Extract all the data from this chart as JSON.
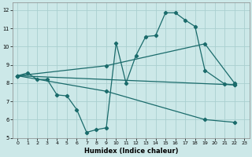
{
  "xlabel": "Humidex (Indice chaleur)",
  "bg_color": "#cce8e8",
  "grid_color": "#aacfcf",
  "line_color": "#1a6b6b",
  "xlim": [
    -0.5,
    23.5
  ],
  "ylim": [
    5,
    12.4
  ],
  "yticks": [
    5,
    6,
    7,
    8,
    9,
    10,
    11,
    12
  ],
  "xticks": [
    0,
    1,
    2,
    3,
    4,
    5,
    6,
    7,
    8,
    9,
    10,
    11,
    12,
    13,
    14,
    15,
    16,
    17,
    18,
    19,
    20,
    21,
    22,
    23
  ],
  "series_jagged": {
    "x": [
      0,
      1,
      2,
      3,
      4,
      5,
      6,
      7,
      8,
      9,
      10,
      11,
      12,
      13,
      14,
      15,
      16,
      17,
      18,
      19,
      21,
      22
    ],
    "y": [
      8.4,
      8.55,
      8.2,
      8.2,
      7.35,
      7.3,
      6.55,
      5.3,
      5.45,
      5.55,
      10.2,
      8.0,
      9.5,
      10.55,
      10.6,
      11.85,
      11.85,
      11.45,
      11.1,
      8.7,
      7.95,
      7.9
    ]
  },
  "series_line1": {
    "x": [
      0,
      22
    ],
    "y": [
      8.4,
      7.9
    ]
  },
  "series_line2": {
    "x": [
      0,
      9,
      19,
      22
    ],
    "y": [
      8.4,
      8.95,
      10.15,
      8.0
    ]
  },
  "series_line3": {
    "x": [
      0,
      9,
      19,
      22
    ],
    "y": [
      8.4,
      7.55,
      6.0,
      5.85
    ]
  }
}
